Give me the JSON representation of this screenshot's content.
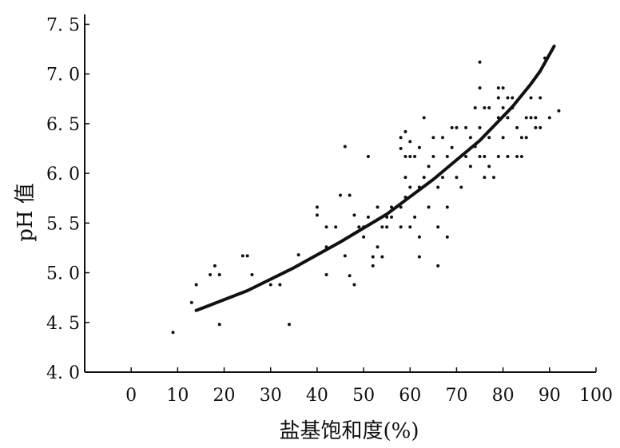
{
  "chart_data": {
    "type": "scatter",
    "title": "",
    "xlabel": "盐基饱和度(%)",
    "ylabel": "pH 值",
    "xlim": [
      -10,
      100
    ],
    "ylim": [
      4.0,
      7.6
    ],
    "x_ticks": [
      0,
      10,
      20,
      30,
      40,
      50,
      60,
      70,
      80,
      90,
      100
    ],
    "x_tick_labels": [
      "0",
      "10",
      "20",
      "30",
      "40",
      "50",
      "60",
      "70",
      "80",
      "90",
      "100"
    ],
    "y_ticks": [
      4.0,
      4.5,
      5.0,
      5.5,
      6.0,
      6.5,
      7.0,
      7.5
    ],
    "y_tick_labels": [
      "4. 0",
      "4. 5",
      "5. 0",
      "5. 5",
      "6. 0",
      "6. 5",
      "7. 0",
      "7. 5"
    ],
    "grid": false,
    "series": [
      {
        "kind": "points",
        "points": [
          [
            9,
            4.4
          ],
          [
            13,
            4.7
          ],
          [
            14,
            4.88
          ],
          [
            17,
            4.98
          ],
          [
            18,
            5.07
          ],
          [
            19,
            4.48
          ],
          [
            19,
            4.98
          ],
          [
            24,
            5.17
          ],
          [
            25,
            5.17
          ],
          [
            26,
            4.98
          ],
          [
            30,
            4.88
          ],
          [
            32,
            4.88
          ],
          [
            34,
            4.48
          ],
          [
            36,
            5.18
          ],
          [
            40,
            5.58
          ],
          [
            40,
            5.66
          ],
          [
            42,
            5.26
          ],
          [
            42,
            5.46
          ],
          [
            42,
            4.98
          ],
          [
            44,
            5.46
          ],
          [
            45,
            5.78
          ],
          [
            46,
            6.27
          ],
          [
            46,
            5.17
          ],
          [
            47,
            4.97
          ],
          [
            47,
            5.78
          ],
          [
            48,
            4.88
          ],
          [
            48,
            5.58
          ],
          [
            49,
            5.46
          ],
          [
            50,
            5.36
          ],
          [
            50,
            5.46
          ],
          [
            51,
            6.17
          ],
          [
            51,
            5.56
          ],
          [
            52,
            5.07
          ],
          [
            52,
            5.16
          ],
          [
            53,
            5.26
          ],
          [
            53,
            5.66
          ],
          [
            54,
            5.46
          ],
          [
            54,
            5.16
          ],
          [
            55,
            5.56
          ],
          [
            55,
            5.46
          ],
          [
            56,
            5.56
          ],
          [
            56,
            5.66
          ],
          [
            57,
            5.66
          ],
          [
            58,
            6.25
          ],
          [
            58,
            6.36
          ],
          [
            58,
            5.66
          ],
          [
            58,
            5.46
          ],
          [
            59,
            6.42
          ],
          [
            59,
            6.17
          ],
          [
            59,
            5.96
          ],
          [
            59,
            5.76
          ],
          [
            60,
            6.32
          ],
          [
            60,
            6.17
          ],
          [
            60,
            5.86
          ],
          [
            60,
            5.46
          ],
          [
            61,
            5.56
          ],
          [
            61,
            6.17
          ],
          [
            62,
            6.26
          ],
          [
            62,
            5.86
          ],
          [
            62,
            5.36
          ],
          [
            62,
            5.16
          ],
          [
            63,
            5.96
          ],
          [
            63,
            6.56
          ],
          [
            64,
            5.66
          ],
          [
            64,
            6.07
          ],
          [
            65,
            6.36
          ],
          [
            65,
            6.17
          ],
          [
            66,
            5.86
          ],
          [
            66,
            5.46
          ],
          [
            66,
            5.07
          ],
          [
            67,
            6.36
          ],
          [
            67,
            5.96
          ],
          [
            68,
            6.17
          ],
          [
            68,
            5.66
          ],
          [
            68,
            5.36
          ],
          [
            69,
            6.46
          ],
          [
            69,
            6.26
          ],
          [
            70,
            6.46
          ],
          [
            70,
            5.96
          ],
          [
            71,
            5.86
          ],
          [
            72,
            6.46
          ],
          [
            72,
            6.17
          ],
          [
            73,
            6.36
          ],
          [
            73,
            6.07
          ],
          [
            74,
            6.66
          ],
          [
            74,
            6.27
          ],
          [
            75,
            7.12
          ],
          [
            75,
            6.86
          ],
          [
            75,
            6.46
          ],
          [
            75,
            6.17
          ],
          [
            76,
            6.66
          ],
          [
            76,
            6.17
          ],
          [
            76,
            5.96
          ],
          [
            77,
            6.66
          ],
          [
            77,
            6.36
          ],
          [
            77,
            6.07
          ],
          [
            78,
            5.96
          ],
          [
            79,
            6.86
          ],
          [
            79,
            6.76
          ],
          [
            79,
            6.56
          ],
          [
            79,
            6.17
          ],
          [
            80,
            6.86
          ],
          [
            80,
            6.66
          ],
          [
            80,
            6.36
          ],
          [
            81,
            6.76
          ],
          [
            81,
            6.56
          ],
          [
            81,
            6.17
          ],
          [
            82,
            6.76
          ],
          [
            82,
            6.66
          ],
          [
            83,
            6.46
          ],
          [
            83,
            6.17
          ],
          [
            84,
            6.36
          ],
          [
            84,
            6.17
          ],
          [
            85,
            6.56
          ],
          [
            85,
            6.36
          ],
          [
            86,
            6.76
          ],
          [
            86,
            6.56
          ],
          [
            87,
            6.46
          ],
          [
            87,
            6.56
          ],
          [
            88,
            6.76
          ],
          [
            88,
            6.46
          ],
          [
            89,
            7.16
          ],
          [
            90,
            6.56
          ],
          [
            92,
            6.63
          ]
        ]
      },
      {
        "kind": "fitted-curve",
        "x": [
          14,
          25,
          35,
          45,
          55,
          65,
          75,
          82,
          86,
          88,
          91
        ],
        "y": [
          4.62,
          4.82,
          5.05,
          5.31,
          5.59,
          5.94,
          6.33,
          6.67,
          6.9,
          7.03,
          7.28
        ]
      }
    ]
  }
}
